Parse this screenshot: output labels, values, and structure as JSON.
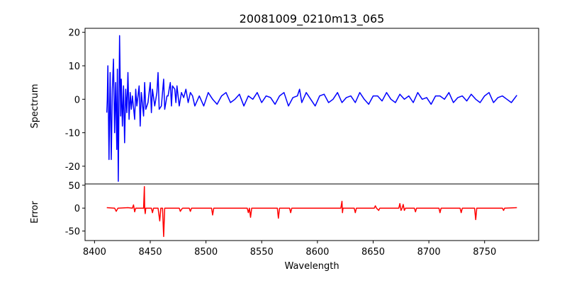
{
  "chart_data": [
    {
      "type": "line",
      "title": "20081009_0210m13_065",
      "xlabel": "",
      "ylabel": "Spectrum",
      "color": "#0000ff",
      "xlim": [
        8391.5,
        8798.5
      ],
      "ylim": [
        -25.3,
        21.2
      ],
      "yticks": [
        -20,
        -10,
        0,
        10,
        20
      ],
      "points": [
        [
          8411,
          -4
        ],
        [
          8411.5,
          0
        ],
        [
          8412,
          10
        ],
        [
          8413,
          -18
        ],
        [
          8414,
          8
        ],
        [
          8415,
          -18
        ],
        [
          8416,
          3
        ],
        [
          8417,
          12
        ],
        [
          8418,
          -10
        ],
        [
          8419,
          5
        ],
        [
          8420,
          -15
        ],
        [
          8420.5,
          9
        ],
        [
          8421.3,
          -24.5
        ],
        [
          8422.5,
          19
        ],
        [
          8423.5,
          -5
        ],
        [
          8424,
          6
        ],
        [
          8425,
          -8
        ],
        [
          8426,
          4
        ],
        [
          8427,
          -13
        ],
        [
          8428,
          3
        ],
        [
          8429,
          -4
        ],
        [
          8430,
          8
        ],
        [
          8431,
          -6
        ],
        [
          8432,
          2
        ],
        [
          8433,
          -3
        ],
        [
          8434,
          1
        ],
        [
          8436,
          -6
        ],
        [
          8437,
          3
        ],
        [
          8438,
          -2
        ],
        [
          8440,
          4
        ],
        [
          8441,
          -8
        ],
        [
          8442,
          2
        ],
        [
          8444,
          -5
        ],
        [
          8445,
          5
        ],
        [
          8446,
          -3
        ],
        [
          8448,
          -1
        ],
        [
          8450,
          5
        ],
        [
          8451,
          -4
        ],
        [
          8452,
          3
        ],
        [
          8454,
          -2
        ],
        [
          8456,
          2
        ],
        [
          8457,
          8
        ],
        [
          8458,
          -3
        ],
        [
          8460,
          -2
        ],
        [
          8461,
          2
        ],
        [
          8462,
          6
        ],
        [
          8463,
          -3
        ],
        [
          8465,
          1
        ],
        [
          8466,
          1
        ],
        [
          8468,
          5
        ],
        [
          8469,
          -2
        ],
        [
          8470,
          4
        ],
        [
          8472,
          3
        ],
        [
          8473,
          -1
        ],
        [
          8474,
          4
        ],
        [
          8476,
          -2
        ],
        [
          8478,
          2
        ],
        [
          8480,
          0.5
        ],
        [
          8482,
          3
        ],
        [
          8484,
          -1
        ],
        [
          8486,
          2
        ],
        [
          8488,
          1
        ],
        [
          8490,
          -2
        ],
        [
          8494,
          1
        ],
        [
          8498,
          -2
        ],
        [
          8502,
          2
        ],
        [
          8506,
          0
        ],
        [
          8510,
          -1.5
        ],
        [
          8514,
          1
        ],
        [
          8518,
          2
        ],
        [
          8522,
          -1
        ],
        [
          8526,
          0
        ],
        [
          8530,
          1.5
        ],
        [
          8534,
          -2
        ],
        [
          8538,
          1
        ],
        [
          8542,
          0
        ],
        [
          8546,
          2
        ],
        [
          8550,
          -1
        ],
        [
          8554,
          1
        ],
        [
          8558,
          0.5
        ],
        [
          8562,
          -1.5
        ],
        [
          8566,
          1
        ],
        [
          8570,
          2
        ],
        [
          8574,
          -2
        ],
        [
          8578,
          0.5
        ],
        [
          8582,
          1
        ],
        [
          8584,
          3
        ],
        [
          8586,
          -1
        ],
        [
          8590,
          2
        ],
        [
          8594,
          0
        ],
        [
          8598,
          -2
        ],
        [
          8602,
          1
        ],
        [
          8606,
          1.5
        ],
        [
          8610,
          -1
        ],
        [
          8614,
          0
        ],
        [
          8618,
          2
        ],
        [
          8622,
          -1
        ],
        [
          8626,
          0.5
        ],
        [
          8630,
          1
        ],
        [
          8634,
          -1
        ],
        [
          8638,
          2
        ],
        [
          8642,
          0
        ],
        [
          8646,
          -1.5
        ],
        [
          8650,
          1
        ],
        [
          8654,
          1
        ],
        [
          8658,
          -0.5
        ],
        [
          8662,
          2
        ],
        [
          8666,
          0
        ],
        [
          8670,
          -1
        ],
        [
          8674,
          1.5
        ],
        [
          8678,
          0
        ],
        [
          8682,
          1
        ],
        [
          8686,
          -1
        ],
        [
          8690,
          2
        ],
        [
          8694,
          0
        ],
        [
          8698,
          0.5
        ],
        [
          8702,
          -1.5
        ],
        [
          8706,
          1
        ],
        [
          8710,
          1
        ],
        [
          8714,
          0
        ],
        [
          8718,
          2
        ],
        [
          8722,
          -1
        ],
        [
          8726,
          0.5
        ],
        [
          8730,
          1
        ],
        [
          8734,
          -0.5
        ],
        [
          8738,
          1.5
        ],
        [
          8742,
          0
        ],
        [
          8746,
          -1
        ],
        [
          8750,
          1
        ],
        [
          8754,
          2
        ],
        [
          8758,
          -1
        ],
        [
          8762,
          0.5
        ],
        [
          8766,
          1
        ],
        [
          8770,
          0
        ],
        [
          8774,
          -1
        ],
        [
          8779,
          1.2
        ]
      ]
    },
    {
      "type": "line",
      "xlabel": "Wavelength",
      "ylabel": "Error",
      "color": "#ff0000",
      "xlim": [
        8391.5,
        8798.5
      ],
      "ylim": [
        -70.8,
        52.8
      ],
      "yticks": [
        -50,
        0,
        50
      ],
      "xticks": [
        8400,
        8450,
        8500,
        8550,
        8600,
        8650,
        8700,
        8750
      ],
      "points": [
        [
          8411,
          1
        ],
        [
          8418,
          0
        ],
        [
          8419.5,
          -7
        ],
        [
          8421,
          0
        ],
        [
          8430,
          1
        ],
        [
          8434,
          0
        ],
        [
          8435,
          7
        ],
        [
          8435.5,
          0
        ],
        [
          8436,
          -8
        ],
        [
          8437,
          0
        ],
        [
          8444,
          0
        ],
        [
          8444.7,
          47
        ],
        [
          8445,
          0
        ],
        [
          8445.5,
          -12
        ],
        [
          8446,
          0
        ],
        [
          8451,
          0
        ],
        [
          8452,
          -10
        ],
        [
          8453,
          0
        ],
        [
          8457,
          0
        ],
        [
          8458.5,
          -28
        ],
        [
          8459.5,
          0
        ],
        [
          8461,
          0
        ],
        [
          8462,
          -62
        ],
        [
          8463,
          0
        ],
        [
          8476,
          0
        ],
        [
          8477,
          -7
        ],
        [
          8478,
          -3
        ],
        [
          8479,
          0
        ],
        [
          8485,
          0
        ],
        [
          8486,
          -7
        ],
        [
          8487,
          0
        ],
        [
          8505,
          0
        ],
        [
          8506,
          -15
        ],
        [
          8507,
          0
        ],
        [
          8537,
          0
        ],
        [
          8538,
          -10
        ],
        [
          8539,
          0
        ],
        [
          8540,
          -20
        ],
        [
          8541,
          0
        ],
        [
          8564,
          0
        ],
        [
          8565,
          -22
        ],
        [
          8566,
          0
        ],
        [
          8575,
          0
        ],
        [
          8576,
          -10
        ],
        [
          8577,
          0
        ],
        [
          8621,
          0
        ],
        [
          8622,
          15
        ],
        [
          8622.5,
          -10
        ],
        [
          8623,
          0
        ],
        [
          8633,
          0
        ],
        [
          8634,
          -10
        ],
        [
          8635,
          0
        ],
        [
          8651,
          0
        ],
        [
          8652,
          5
        ],
        [
          8653,
          0
        ],
        [
          8655,
          -5
        ],
        [
          8656,
          0
        ],
        [
          8673,
          0
        ],
        [
          8674,
          10
        ],
        [
          8675,
          -5
        ],
        [
          8676,
          0
        ],
        [
          8677,
          8
        ],
        [
          8678,
          -5
        ],
        [
          8679,
          0
        ],
        [
          8687,
          0
        ],
        [
          8688,
          -8
        ],
        [
          8689,
          0
        ],
        [
          8709,
          0
        ],
        [
          8710,
          -10
        ],
        [
          8711,
          0
        ],
        [
          8728,
          0
        ],
        [
          8729,
          -10
        ],
        [
          8730,
          0
        ],
        [
          8741,
          0
        ],
        [
          8742,
          -25
        ],
        [
          8743,
          0
        ],
        [
          8766,
          0
        ],
        [
          8767,
          -5
        ],
        [
          8768,
          0
        ],
        [
          8779,
          1
        ]
      ]
    }
  ]
}
